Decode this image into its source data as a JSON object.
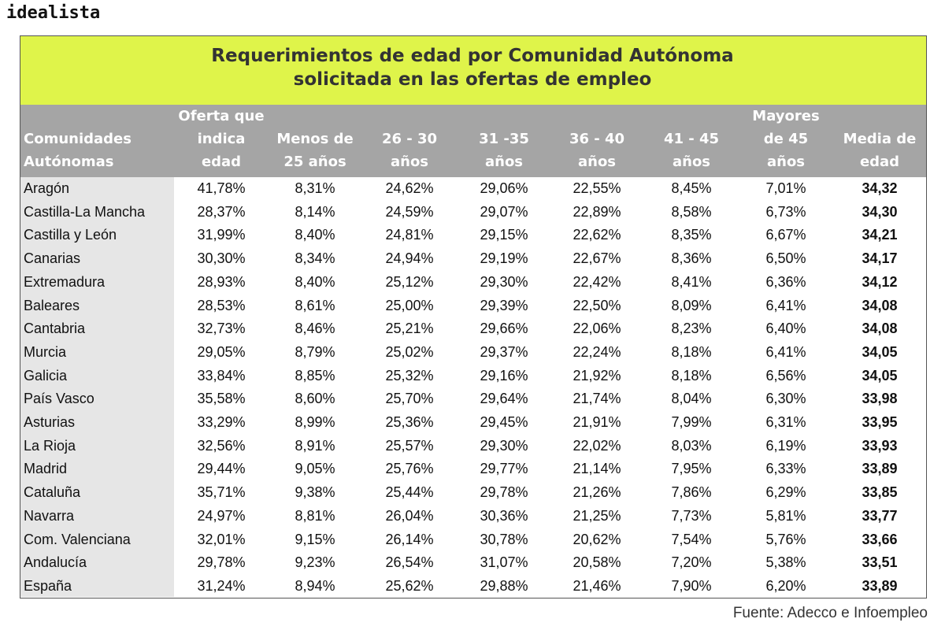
{
  "logo": "idealista",
  "title": [
    "Requerimientos de edad por Comunidad Autónoma",
    "solicitada en las ofertas de empleo"
  ],
  "table": {
    "columns": [
      [
        "Comunidades",
        "Autónomas"
      ],
      [
        "Oferta que",
        "indica",
        "edad"
      ],
      [
        "Menos de",
        "25 años"
      ],
      [
        "26 - 30",
        "años"
      ],
      [
        "31 -35",
        "años"
      ],
      [
        "36 - 40",
        "años"
      ],
      [
        "41 - 45",
        "años"
      ],
      [
        "Mayores",
        "de 45",
        "años"
      ],
      [
        "Media de",
        "edad"
      ]
    ],
    "rows": [
      [
        "Aragón",
        "41,78%",
        "8,31%",
        "24,62%",
        "29,06%",
        "22,55%",
        "8,45%",
        "7,01%",
        "34,32"
      ],
      [
        "Castilla-La Mancha",
        "28,37%",
        "8,14%",
        "24,59%",
        "29,07%",
        "22,89%",
        "8,58%",
        "6,73%",
        "34,30"
      ],
      [
        "Castilla y León",
        "31,99%",
        "8,40%",
        "24,81%",
        "29,15%",
        "22,62%",
        "8,35%",
        "6,67%",
        "34,21"
      ],
      [
        "Canarias",
        "30,30%",
        "8,34%",
        "24,94%",
        "29,19%",
        "22,67%",
        "8,36%",
        "6,50%",
        "34,17"
      ],
      [
        "Extremadura",
        "28,93%",
        "8,40%",
        "25,12%",
        "29,30%",
        "22,42%",
        "8,41%",
        "6,36%",
        "34,12"
      ],
      [
        "Baleares",
        "28,53%",
        "8,61%",
        "25,00%",
        "29,39%",
        "22,50%",
        "8,09%",
        "6,41%",
        "34,08"
      ],
      [
        "Cantabria",
        "32,73%",
        "8,46%",
        "25,21%",
        "29,66%",
        "22,06%",
        "8,23%",
        "6,40%",
        "34,08"
      ],
      [
        "Murcia",
        "29,05%",
        "8,79%",
        "25,02%",
        "29,37%",
        "22,24%",
        "8,18%",
        "6,41%",
        "34,05"
      ],
      [
        "Galicia",
        "33,84%",
        "8,85%",
        "25,32%",
        "29,16%",
        "21,92%",
        "8,18%",
        "6,56%",
        "34,05"
      ],
      [
        "País Vasco",
        "35,58%",
        "8,60%",
        "25,70%",
        "29,64%",
        "21,74%",
        "8,04%",
        "6,30%",
        "33,98"
      ],
      [
        "Asturias",
        "33,29%",
        "8,99%",
        "25,36%",
        "29,45%",
        "21,91%",
        "7,99%",
        "6,31%",
        "33,95"
      ],
      [
        "La Rioja",
        "32,56%",
        "8,91%",
        "25,57%",
        "29,30%",
        "22,02%",
        "8,03%",
        "6,19%",
        "33,93"
      ],
      [
        "Madrid",
        "29,44%",
        "9,05%",
        "25,76%",
        "29,77%",
        "21,14%",
        "7,95%",
        "6,33%",
        "33,89"
      ],
      [
        "Cataluña",
        "35,71%",
        "9,38%",
        "25,44%",
        "29,78%",
        "21,26%",
        "7,86%",
        "6,29%",
        "33,85"
      ],
      [
        "Navarra",
        "24,97%",
        "8,81%",
        "26,04%",
        "30,36%",
        "21,25%",
        "7,73%",
        "5,81%",
        "33,77"
      ],
      [
        "Com. Valenciana",
        "32,01%",
        "9,15%",
        "26,14%",
        "30,78%",
        "20,62%",
        "7,54%",
        "5,76%",
        "33,66"
      ],
      [
        "Andalucía",
        "29,78%",
        "9,23%",
        "26,54%",
        "31,07%",
        "20,58%",
        "7,20%",
        "5,38%",
        "33,51"
      ],
      [
        "España",
        "31,24%",
        "8,94%",
        "25,62%",
        "29,88%",
        "21,46%",
        "7,90%",
        "6,20%",
        "33,89"
      ]
    ]
  },
  "source": "Fuente: Adecco e Infoempleo"
}
